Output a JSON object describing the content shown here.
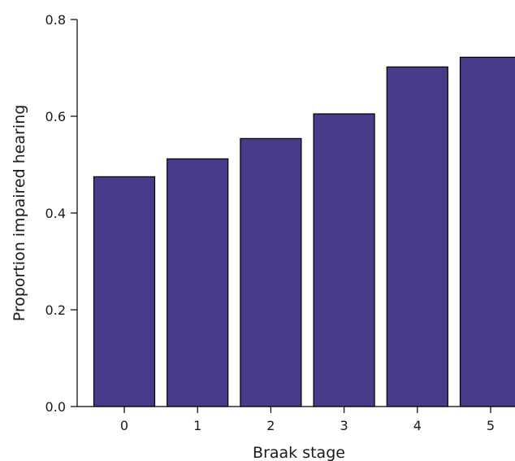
{
  "chart_data": {
    "type": "bar",
    "categories": [
      "0",
      "1",
      "2",
      "3",
      "4",
      "5"
    ],
    "values": [
      0.475,
      0.512,
      0.554,
      0.605,
      0.702,
      0.722
    ],
    "xlabel": "Braak stage",
    "ylabel": "Proportion impaired hearing",
    "ylim": [
      0,
      0.8
    ],
    "yticks": [
      "0.0",
      "0.2",
      "0.4",
      "0.6",
      "0.8"
    ],
    "grid": false,
    "bar_color": "#4a3a8a",
    "bar_edge_color": "#000000"
  }
}
